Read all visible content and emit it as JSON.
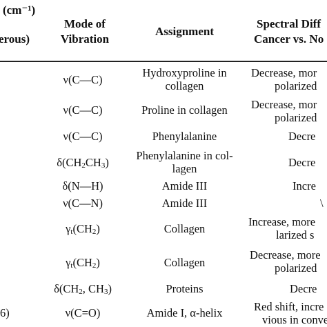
{
  "header": {
    "col0_line1": "(cm⁻¹)",
    "col0_line2": "erous)",
    "col1_line1": "Mode of",
    "col1_line2": "Vibration",
    "col2": "Assignment",
    "col3_line1": "Spectral Diff",
    "col3_line2": "Cancer vs. No"
  },
  "rows": [
    {
      "first": "",
      "mode": "ν(C—C)",
      "assign1": "Hydroxyproline in",
      "assign2": "collagen",
      "spec1": "Decrease, mor",
      "spec2": "polarized"
    },
    {
      "first": "",
      "mode": "ν(C—C)",
      "assign1": "Proline in collagen",
      "assign2": "",
      "spec1": "Decrease, mor",
      "spec2": "polarized"
    },
    {
      "first": "",
      "mode": "ν(C—C)",
      "assign1": "Phenylalanine",
      "assign2": "",
      "spec1": "Decre",
      "spec2": ""
    },
    {
      "first": "",
      "mode": "δ(CH2CH3)",
      "assign1": "Phenylalanine in col-",
      "assign2": "lagen",
      "spec1": "Decre",
      "spec2": ""
    },
    {
      "first": "",
      "mode": "δ(N—H)",
      "assign1": "Amide III",
      "assign2": "",
      "spec1": "Incre",
      "spec2": ""
    },
    {
      "first": "",
      "mode": "ν(C—N)",
      "assign1": "Amide III",
      "assign2": "",
      "spec1": "\\",
      "spec2": ""
    },
    {
      "first": "",
      "mode": "γt(CH2)",
      "assign1": "Collagen",
      "assign2": "",
      "spec1": "Increase, more",
      "spec2": "larized s"
    },
    {
      "first": "",
      "mode": "γt(CH2)",
      "assign1": "Collagen",
      "assign2": "",
      "spec1": "Decrease, more",
      "spec2": "polarized"
    },
    {
      "first": "",
      "mode": "δ(CH2, CH3)",
      "assign1": "Proteins",
      "assign2": "",
      "spec1": "Decre",
      "spec2": ""
    },
    {
      "first": "6)",
      "mode": "ν(C=O)",
      "assign1": "Amide I, α-helix",
      "assign2": "",
      "spec1": "Red shift, incre",
      "spec2": "vious in conver"
    }
  ]
}
